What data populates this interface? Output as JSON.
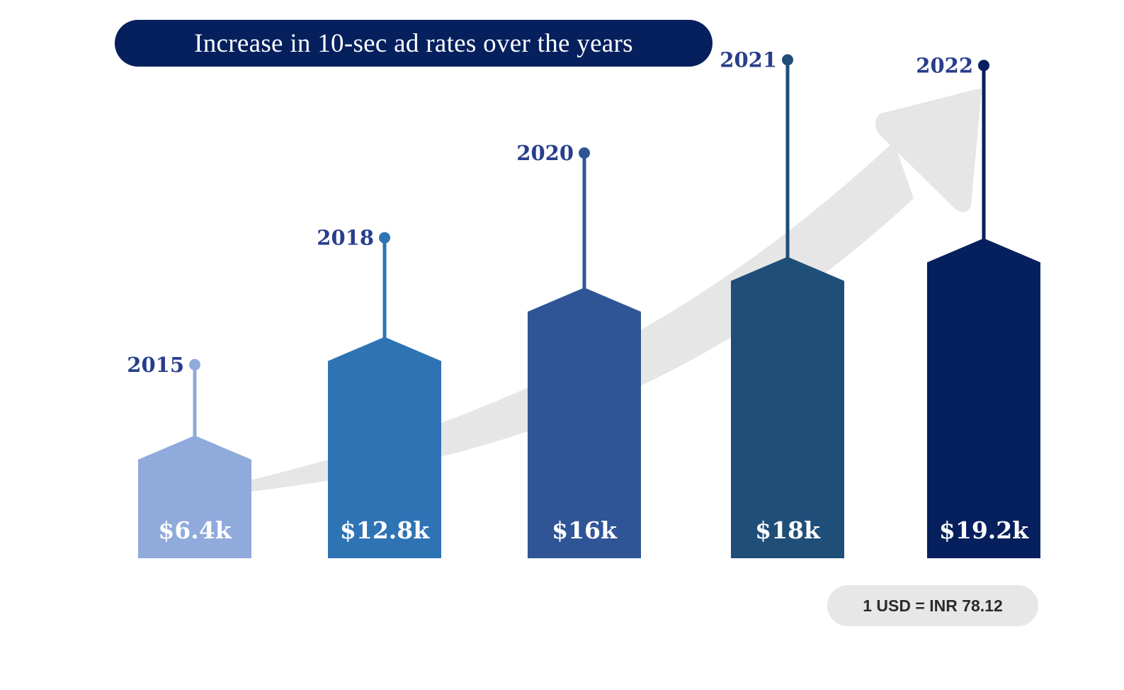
{
  "title": "Increase in 10-sec ad rates over the years",
  "note": "1 USD = INR 78.12",
  "colors": {
    "title_bg": "#06205e",
    "arrow": "#e6e6e6",
    "year_text": "#283e8c",
    "note_bg": "#e7e7e7"
  },
  "chart_data": {
    "type": "bar",
    "title": "Increase in 10-sec ad rates over the years",
    "categories": [
      "2015",
      "2018",
      "2020",
      "2021",
      "2022"
    ],
    "values": [
      6.4,
      12.8,
      16,
      18,
      19.2
    ],
    "value_labels": [
      "$6.4k",
      "$12.8k",
      "$16k",
      "$18k",
      "$19.2k"
    ],
    "unit": "USD thousands",
    "bar_colors": [
      "#8faadb",
      "#2e74b5",
      "#2f5597",
      "#1f4e79",
      "#06205e"
    ],
    "trend_arrow": "upward",
    "ylim": [
      0,
      20
    ],
    "grid": false
  }
}
